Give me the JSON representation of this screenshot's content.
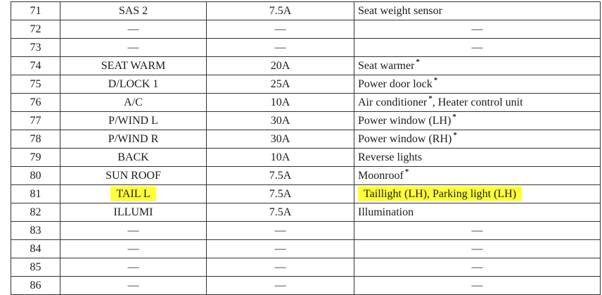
{
  "highlight_color": "#ffff3a",
  "rows": [
    {
      "num": "71",
      "name": "SAS 2",
      "amp": "7.5A",
      "desc": "Seat weight sensor",
      "star": false,
      "desc_after": ""
    },
    {
      "num": "72",
      "name": "—",
      "amp": "—",
      "desc": "—",
      "star": false,
      "desc_after": ""
    },
    {
      "num": "73",
      "name": "—",
      "amp": "—",
      "desc": "—",
      "star": false,
      "desc_after": ""
    },
    {
      "num": "74",
      "name": "SEAT WARM",
      "amp": "20A",
      "desc": "Seat warmer",
      "star": true,
      "desc_after": ""
    },
    {
      "num": "75",
      "name": "D/LOCK 1",
      "amp": "25A",
      "desc": "Power door lock",
      "star": true,
      "desc_after": ""
    },
    {
      "num": "76",
      "name": "A/C",
      "amp": "10A",
      "desc": "Air conditioner",
      "star": true,
      "desc_after": ", Heater control unit"
    },
    {
      "num": "77",
      "name": "P/WIND L",
      "amp": "30A",
      "desc": "Power window (LH)",
      "star": true,
      "desc_after": ""
    },
    {
      "num": "78",
      "name": "P/WIND R",
      "amp": "30A",
      "desc": "Power window (RH)",
      "star": true,
      "desc_after": ""
    },
    {
      "num": "79",
      "name": "BACK",
      "amp": "10A",
      "desc": "Reverse lights",
      "star": false,
      "desc_after": ""
    },
    {
      "num": "80",
      "name": "SUN ROOF",
      "amp": "7.5A",
      "desc": "Moonroof",
      "star": true,
      "desc_after": ""
    },
    {
      "num": "81",
      "name": "TAIL L",
      "amp": "7.5A",
      "desc": "Taillight (LH), Parking light (LH)",
      "star": false,
      "desc_after": "",
      "highlighted": true
    },
    {
      "num": "82",
      "name": "ILLUMI",
      "amp": "7.5A",
      "desc": "Illumination",
      "star": false,
      "desc_after": ""
    },
    {
      "num": "83",
      "name": "—",
      "amp": "—",
      "desc": "—",
      "star": false,
      "desc_after": ""
    },
    {
      "num": "84",
      "name": "—",
      "amp": "—",
      "desc": "—",
      "star": false,
      "desc_after": ""
    },
    {
      "num": "85",
      "name": "—",
      "amp": "—",
      "desc": "—",
      "star": false,
      "desc_after": ""
    },
    {
      "num": "86",
      "name": "—",
      "amp": "—",
      "desc": "—",
      "star": false,
      "desc_after": ""
    }
  ],
  "star_symbol": "*"
}
